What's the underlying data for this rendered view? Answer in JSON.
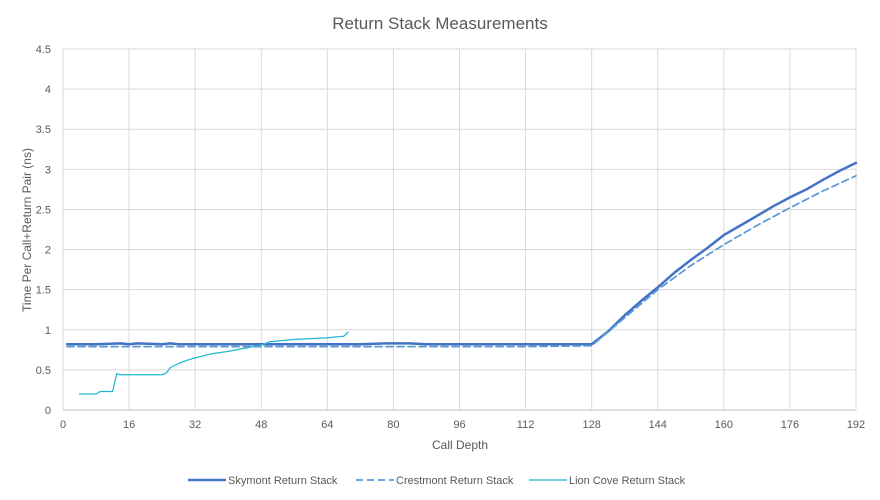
{
  "chart_data": {
    "type": "line",
    "title": "Return Stack Measurements",
    "xlabel": "Call Depth",
    "ylabel": "Time Per Call+Return Pair (ns)",
    "xlim": [
      0,
      192
    ],
    "ylim": [
      0,
      4.5
    ],
    "xticks": [
      "0",
      "16",
      "32",
      "48",
      "64",
      "80",
      "96",
      "112",
      "128",
      "144",
      "160",
      "176",
      "192"
    ],
    "yticks": [
      "0",
      "0.5",
      "1",
      "1.5",
      "2",
      "2.5",
      "3",
      "3.5",
      "4",
      "4.5"
    ],
    "grid": "vertical and horizontal",
    "legend_position": "bottom",
    "series": [
      {
        "name": "Skymont Return Stack",
        "color": "#4472C4",
        "style": "solid-thick",
        "x": [
          1,
          8,
          14,
          16,
          18,
          24,
          26,
          28,
          32,
          40,
          48,
          56,
          64,
          72,
          78,
          84,
          88,
          96,
          104,
          112,
          120,
          128,
          132,
          136,
          140,
          144,
          148,
          152,
          156,
          160,
          164,
          168,
          172,
          176,
          180,
          184,
          188,
          192
        ],
        "y": [
          0.82,
          0.82,
          0.83,
          0.82,
          0.83,
          0.82,
          0.83,
          0.82,
          0.82,
          0.82,
          0.82,
          0.82,
          0.82,
          0.82,
          0.83,
          0.83,
          0.82,
          0.82,
          0.82,
          0.82,
          0.82,
          0.82,
          0.98,
          1.18,
          1.36,
          1.53,
          1.71,
          1.87,
          2.02,
          2.18,
          2.3,
          2.42,
          2.54,
          2.65,
          2.75,
          2.87,
          2.98,
          3.08
        ]
      },
      {
        "name": "Crestmont Return Stack",
        "color": "#5B9BD5",
        "style": "dashed",
        "x": [
          1,
          16,
          32,
          48,
          64,
          80,
          96,
          112,
          128,
          136,
          144,
          152,
          160,
          168,
          176,
          184,
          192
        ],
        "y": [
          0.79,
          0.79,
          0.79,
          0.79,
          0.79,
          0.79,
          0.79,
          0.79,
          0.8,
          1.15,
          1.5,
          1.8,
          2.06,
          2.3,
          2.52,
          2.73,
          2.92
        ]
      },
      {
        "name": "Lion Cove Return Stack",
        "color": "#1EB9D0",
        "style": "solid-thin",
        "x": [
          4,
          8,
          9,
          10,
          12,
          13,
          14,
          16,
          20,
          24,
          25,
          26,
          28,
          30,
          32,
          36,
          40,
          44,
          46,
          48,
          50,
          52,
          56,
          60,
          64,
          66,
          68,
          69
        ],
        "y": [
          0.2,
          0.2,
          0.23,
          0.23,
          0.23,
          0.45,
          0.44,
          0.44,
          0.44,
          0.44,
          0.46,
          0.53,
          0.58,
          0.62,
          0.65,
          0.7,
          0.73,
          0.77,
          0.79,
          0.81,
          0.85,
          0.86,
          0.88,
          0.89,
          0.9,
          0.91,
          0.92,
          0.97
        ]
      }
    ]
  }
}
